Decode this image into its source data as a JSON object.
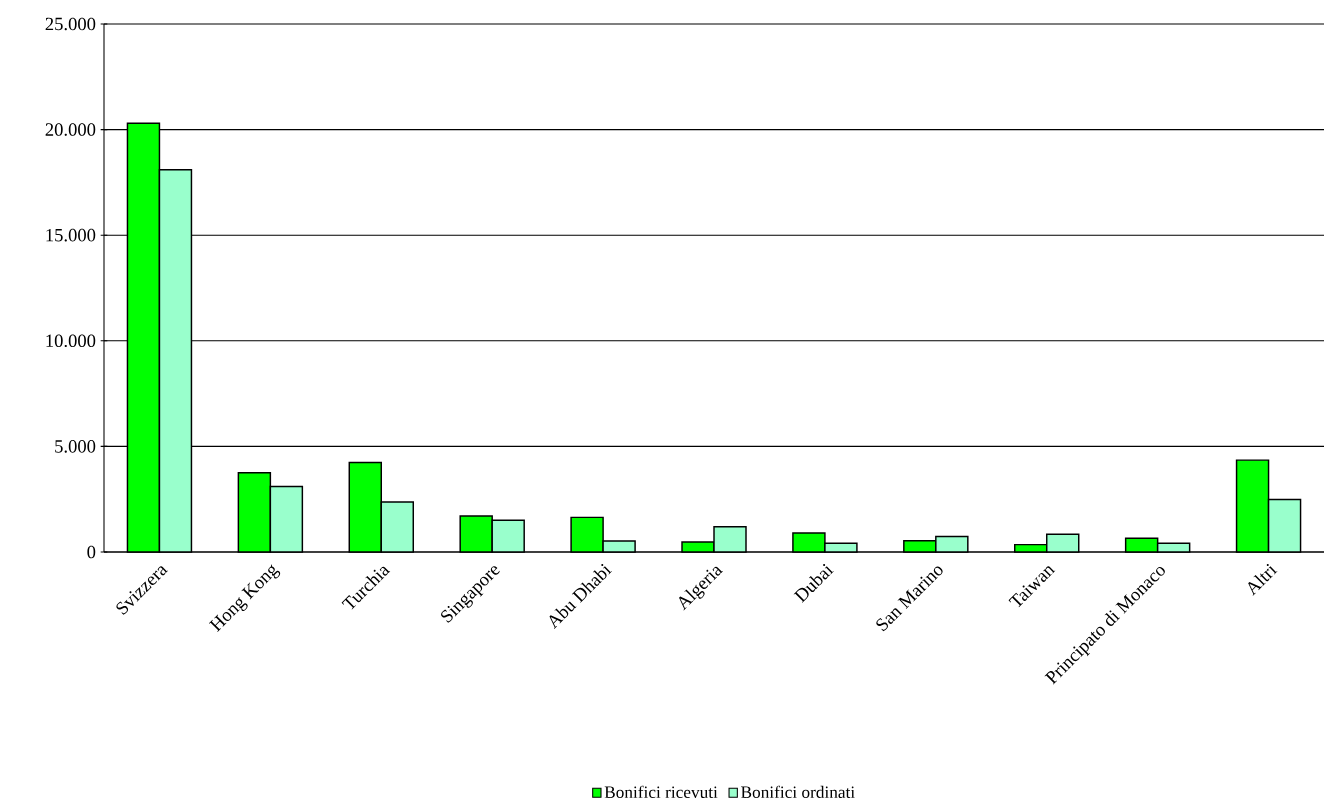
{
  "chart_data": {
    "type": "bar",
    "categories": [
      "Svizzera",
      "Hong Kong",
      "Turchia",
      "Singapore",
      "Abu Dhabi",
      "Algeria",
      "Dubai",
      "San Marino",
      "Taiwan",
      "Principato di Monaco",
      "Altri"
    ],
    "series": [
      {
        "name": "Bonifici ricevuti",
        "color": "#00ff00",
        "values": [
          20300,
          3750,
          4240,
          1700,
          1640,
          470,
          900,
          530,
          350,
          650,
          4350
        ]
      },
      {
        "name": "Bonifici ordinati",
        "color": "#99ffcc",
        "values": [
          18100,
          3100,
          2370,
          1500,
          520,
          1200,
          410,
          730,
          840,
          410,
          2490
        ]
      }
    ],
    "ylim": [
      0,
      25000
    ],
    "yticks": [
      0,
      {
        "value": 5000,
        "label": "5.000"
      },
      {
        "value": 10000,
        "label": "10.000"
      },
      {
        "value": 15000,
        "label": "15.000"
      },
      {
        "value": 20000,
        "label": "20.000"
      },
      {
        "value": 25000,
        "label": "25.000"
      }
    ],
    "grid": "y",
    "legend": "bottom"
  }
}
